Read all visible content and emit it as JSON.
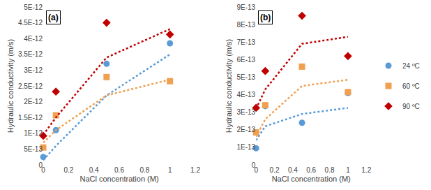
{
  "chart_data": [
    {
      "type": "scatter",
      "annotations": [
        "(a)"
      ],
      "x_label": "NaCl concentration (M)",
      "y_label": "Hydraulic conductivity (m/s)",
      "x": [
        0,
        0.1,
        0.5,
        1.0
      ],
      "xlim": [
        0,
        1.2
      ],
      "xticks": [
        0,
        0.2,
        0.4,
        0.6,
        0.8,
        1,
        1.2
      ],
      "ylim": [
        0,
        5e-12
      ],
      "yticks": [
        0,
        {
          "value": 5e-13,
          "label": "5E-13"
        },
        {
          "value": 1e-12,
          "label": "1E-12"
        },
        {
          "value": 1.5e-12,
          "label": "1.5E-12"
        },
        {
          "value": 2e-12,
          "label": "2E-12"
        },
        {
          "value": 2.5e-12,
          "label": "2.5E-12"
        },
        {
          "value": 3e-12,
          "label": "3E-12"
        },
        {
          "value": 3.5e-12,
          "label": "3.5E-12"
        },
        {
          "value": 4e-12,
          "label": "4E-12"
        },
        {
          "value": 4.5e-12,
          "label": "4.5E-12"
        },
        {
          "value": 5e-12,
          "label": "5E-12"
        }
      ],
      "grid": false,
      "series": [
        {
          "name": "24 ºC",
          "color": "#5b9bd5",
          "marker": "circle",
          "values": [
            2.5e-13,
            1.1e-12,
            3.2e-12,
            3.85e-12
          ]
        },
        {
          "name": "60 ºC",
          "color": "#f0a050",
          "marker": "square",
          "values": [
            5.5e-13,
            1.57e-12,
            2.78e-12,
            2.65e-12
          ]
        },
        {
          "name": "90 ºC",
          "color": "#c00000",
          "marker": "diamond",
          "values": [
            9.2e-13,
            2.32e-12,
            4.5e-12,
            4.13e-12
          ]
        },
        {
          "type": "line",
          "line_style": "dotted",
          "color": "#5b9bd5",
          "values": [
            1.5e-13,
            6e-13,
            2.2e-12,
            3.5e-12
          ]
        },
        {
          "type": "line",
          "line_style": "dotted",
          "color": "#f0a050",
          "values": [
            7e-13,
            1.1e-12,
            2.2e-12,
            2.7e-12
          ]
        },
        {
          "type": "line",
          "line_style": "dotted",
          "color": "#c00000",
          "values": [
            9.5e-13,
            1.5e-12,
            3.4e-12,
            4.3e-12
          ]
        }
      ]
    },
    {
      "type": "scatter",
      "annotations": [
        "(b)"
      ],
      "x_label": "NaCl concentration (M)",
      "y_label": "Hydraulic conductivity (m/s)",
      "x": [
        0,
        0.1,
        0.5,
        1.0
      ],
      "xlim": [
        0,
        1.2
      ],
      "xticks": [
        0,
        0.2,
        0.4,
        0.6,
        0.8,
        1,
        1.2
      ],
      "ylim": [
        0,
        9e-13
      ],
      "yticks": [
        0,
        {
          "value": 1e-13,
          "label": "1E-13"
        },
        {
          "value": 2e-13,
          "label": "2E-13"
        },
        {
          "value": 3e-13,
          "label": "3E-13"
        },
        {
          "value": 4e-13,
          "label": "4E-13"
        },
        {
          "value": 5e-13,
          "label": "5E-13"
        },
        {
          "value": 6e-13,
          "label": "6E-13"
        },
        {
          "value": 7e-13,
          "label": "7E-13"
        },
        {
          "value": 8e-13,
          "label": "8E-13"
        },
        {
          "value": 9e-13,
          "label": "9E-13"
        }
      ],
      "grid": false,
      "legend": "right",
      "series": [
        {
          "name": "24 ºC",
          "color": "#5b9bd5",
          "marker": "circle",
          "values": [
            9.5e-14,
            3.35e-13,
            2.4e-13,
            4.1e-13
          ]
        },
        {
          "name": "60 ºC",
          "color": "#f0a050",
          "marker": "square",
          "values": [
            1.85e-13,
            3.4e-13,
            5.6e-13,
            4.15e-13
          ]
        },
        {
          "name": "90 ºC",
          "color": "#c00000",
          "marker": "diamond",
          "values": [
            3.25e-13,
            5.35e-13,
            8.5e-13,
            6.2e-13
          ]
        },
        {
          "type": "line",
          "line_style": "dotted",
          "color": "#5b9bd5",
          "values": [
            1.4e-13,
            2.2e-13,
            2.9e-13,
            3.25e-13
          ]
        },
        {
          "type": "line",
          "line_style": "dotted",
          "color": "#f0a050",
          "values": [
            1.6e-13,
            2.6e-13,
            4.5e-13,
            4.85e-13
          ]
        },
        {
          "type": "line",
          "line_style": "dotted",
          "color": "#c00000",
          "values": [
            3.2e-13,
            4.3e-13,
            6.9e-13,
            7.3e-13
          ]
        }
      ]
    }
  ]
}
